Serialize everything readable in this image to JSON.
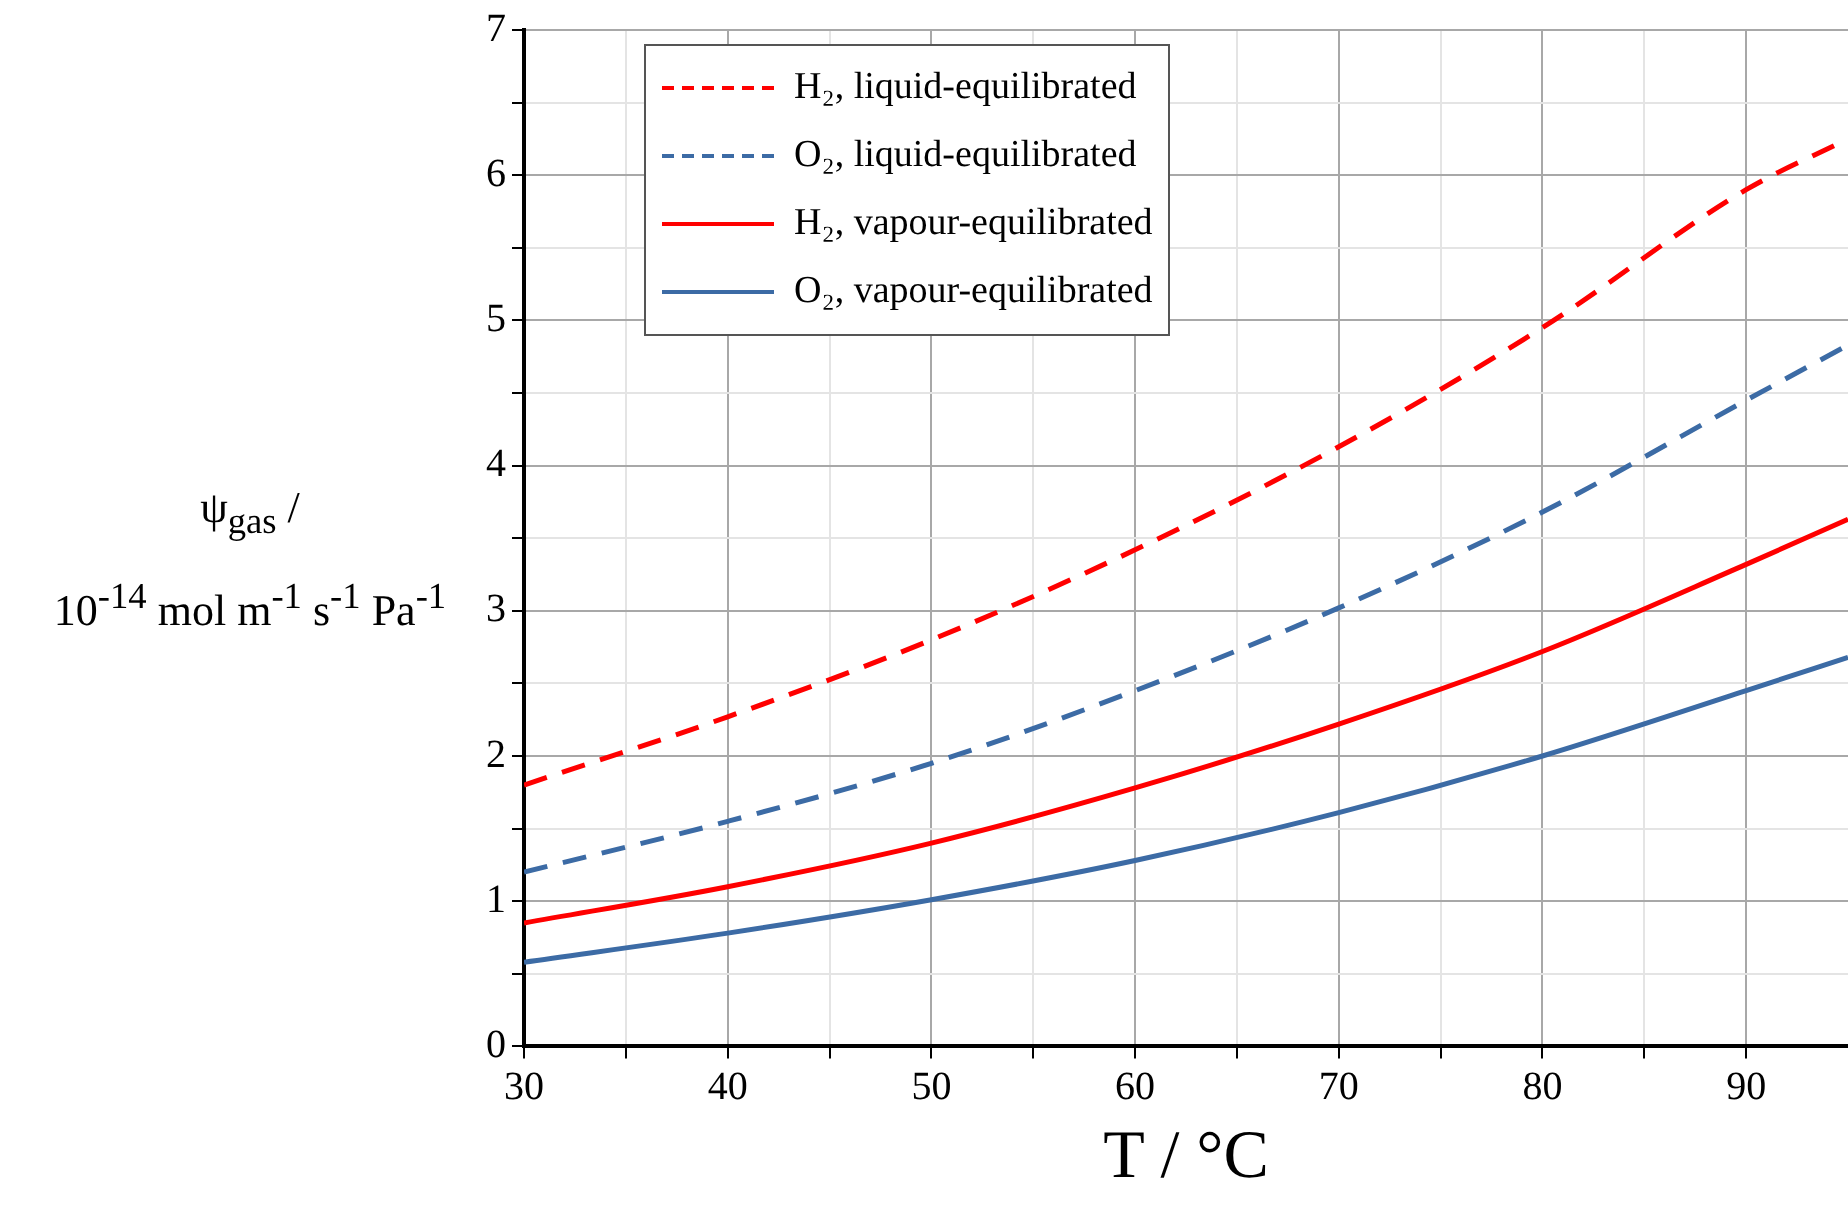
{
  "chart_data": {
    "type": "line",
    "xlabel": "T / °C",
    "ylabel": "ψ$_{gas}$ /\n10$^{-14}$ mol m$^{-1}$ s$^{-1}$ Pa$^{-1}$",
    "x": [
      30,
      40,
      50,
      60,
      70,
      80,
      90,
      95
    ],
    "series": [
      {
        "name": "H₂, liquid-equilibrated",
        "color": "#ff0000",
        "line_style": "dashed",
        "values": [
          1.8,
          2.27,
          2.8,
          3.42,
          4.13,
          4.95,
          5.9,
          6.25
        ]
      },
      {
        "name": "O₂, liquid-equilibrated",
        "color": "#3c6ba5",
        "line_style": "dashed",
        "values": [
          1.2,
          1.55,
          1.95,
          2.45,
          3.02,
          3.68,
          4.45,
          4.83
        ]
      },
      {
        "name": "H₂, vapour-equilibrated",
        "color": "#ff0000",
        "line_style": "solid",
        "values": [
          0.85,
          1.1,
          1.4,
          1.78,
          2.22,
          2.72,
          3.32,
          3.63
        ]
      },
      {
        "name": "O₂, vapour-equilibrated",
        "color": "#3c6ba5",
        "line_style": "solid",
        "values": [
          0.58,
          0.78,
          1.01,
          1.28,
          1.61,
          2.0,
          2.45,
          2.68
        ]
      }
    ],
    "xlim": [
      30,
      95
    ],
    "xticks": [
      30,
      {
        "value": 35,
        "label": null
      },
      40,
      {
        "value": 45,
        "label": null
      },
      50,
      {
        "value": 55,
        "label": null
      },
      60,
      {
        "value": 65,
        "label": null
      },
      70,
      {
        "value": 75,
        "label": null
      },
      80,
      {
        "value": 85,
        "label": null
      },
      90
    ],
    "ylim": [
      0,
      7
    ],
    "yticks": [
      0,
      {
        "value": 0.5,
        "label": null
      },
      1,
      {
        "value": 1.5,
        "label": null
      },
      2,
      {
        "value": 2.5,
        "label": null
      },
      3,
      {
        "value": 3.5,
        "label": null
      },
      4,
      {
        "value": 4.5,
        "label": null
      },
      5,
      {
        "value": 5.5,
        "label": null
      },
      6,
      {
        "value": 6.5,
        "label": null
      },
      7
    ],
    "grid": true,
    "legend": "top left",
    "marker": "none"
  }
}
